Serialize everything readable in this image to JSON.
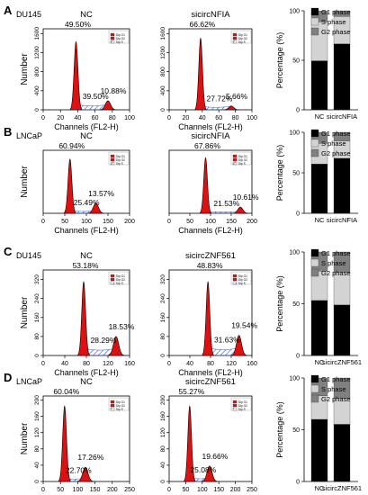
{
  "colors": {
    "g1": "#000000",
    "s": "#d3d3d3",
    "g2": "#808080",
    "peak": "#dd1111",
    "hatch": "#3355cc"
  },
  "chart_data": [
    {
      "type": "area",
      "panel": "A",
      "title": "NC",
      "cell_line": "DU145",
      "xlabel": "Channels (FL2-H)",
      "ylabel": "Number",
      "xticks": [
        "0",
        "20",
        "40",
        "60",
        "80",
        "100"
      ],
      "yticks": [
        "0",
        "400",
        "800",
        "1200",
        "1600"
      ],
      "xlim": [
        0,
        100
      ],
      "ylim": [
        0,
        1700
      ],
      "legend": [
        "Dip G1",
        "Dip G2",
        "Dip S"
      ],
      "annotations": {
        "g1": "49.50%",
        "s": "39.50%",
        "g2": "10.88%"
      },
      "peaks": {
        "g1_x": 38,
        "g1_h": 1430,
        "g2_x": 75,
        "g2_h": 190,
        "s_level": 110
      }
    },
    {
      "type": "area",
      "panel": "A",
      "title": "sicircNFIA",
      "xlabel": "Channels (FL2-H)",
      "ylabel": "",
      "xticks": [
        "0",
        "20",
        "40",
        "60",
        "80",
        "100"
      ],
      "yticks": [
        "0",
        "400",
        "800",
        "1200",
        "1600"
      ],
      "xlim": [
        0,
        100
      ],
      "ylim": [
        0,
        1700
      ],
      "legend": [
        "Dip G1",
        "Dip G2",
        "Dip S"
      ],
      "annotations": {
        "g1": "66.62%",
        "s": "27.72%",
        "g2": "5.66%"
      },
      "peaks": {
        "g1_x": 38,
        "g1_h": 1500,
        "g2_x": 75,
        "g2_h": 80,
        "s_level": 70
      }
    },
    {
      "type": "bar",
      "panel": "A",
      "categories": [
        "NC",
        "sicircNFIA"
      ],
      "ylabel": "Percentage (%)",
      "ylim": [
        0,
        100
      ],
      "yticks": [
        "0",
        "50",
        "100"
      ],
      "legend_position": "top-right",
      "series": [
        {
          "name": "G1 phase",
          "values": [
            49.5,
            66.62
          ]
        },
        {
          "name": "S phase",
          "values": [
            39.5,
            27.72
          ]
        },
        {
          "name": "G2 phase",
          "values": [
            10.88,
            5.66
          ]
        }
      ]
    },
    {
      "type": "area",
      "panel": "B",
      "title": "NC",
      "cell_line": "LNCaP",
      "xlabel": "Channels (FL2-H)",
      "ylabel": "Number",
      "xticks": [
        "0",
        "50",
        "100",
        "150",
        "200"
      ],
      "yticks": [],
      "xlim": [
        0,
        200
      ],
      "ylim": [
        0,
        100
      ],
      "legend": [
        "Dip G1",
        "Dip G2",
        "Dip S"
      ],
      "annotations": {
        "g1": "60.94%",
        "s": "25.49%",
        "g2": "13.57%"
      },
      "peaks": {
        "g1_x": 62,
        "g1_h": 86,
        "g2_x": 122,
        "g2_h": 16,
        "s_level": 4
      }
    },
    {
      "type": "area",
      "panel": "B",
      "title": "sicircNFIA",
      "xlabel": "Channels (FL2-H)",
      "ylabel": "",
      "xticks": [
        "0",
        "50",
        "100",
        "150",
        "200"
      ],
      "yticks": [],
      "xlim": [
        0,
        200
      ],
      "ylim": [
        0,
        100
      ],
      "legend": [
        "Dip G1",
        "Dip G2",
        "Dip S"
      ],
      "annotations": {
        "g1": "67.86%",
        "s": "21.53%",
        "g2": "10.61%"
      },
      "peaks": {
        "g1_x": 88,
        "g1_h": 88,
        "g2_x": 172,
        "g2_h": 10,
        "s_level": 3
      }
    },
    {
      "type": "bar",
      "panel": "B",
      "categories": [
        "NC",
        "sicircNFIA"
      ],
      "ylabel": "Percentage (%)",
      "ylim": [
        0,
        100
      ],
      "yticks": [
        "0",
        "50",
        "100"
      ],
      "legend_position": "top-right",
      "series": [
        {
          "name": "G1 phase",
          "values": [
            60.94,
            67.86
          ]
        },
        {
          "name": "S phase",
          "values": [
            25.49,
            21.53
          ]
        },
        {
          "name": "G2 phase",
          "values": [
            13.57,
            10.61
          ]
        }
      ]
    },
    {
      "type": "area",
      "panel": "C",
      "title": "NC",
      "cell_line": "DU145",
      "xlabel": "Channels (FL2-H)",
      "ylabel": "Number",
      "xticks": [
        "0",
        "40",
        "80",
        "120",
        "160"
      ],
      "yticks": [
        "0",
        "80",
        "160",
        "240",
        "320"
      ],
      "xlim": [
        0,
        160
      ],
      "ylim": [
        0,
        360
      ],
      "legend": [
        "Dip G1",
        "Dip G2",
        "Dip S"
      ],
      "annotations": {
        "g1": "53.18%",
        "s": "28.29%",
        "g2": "18.53%"
      },
      "peaks": {
        "g1_x": 75,
        "g1_h": 310,
        "g2_x": 135,
        "g2_h": 80,
        "s_level": 30
      }
    },
    {
      "type": "area",
      "panel": "C",
      "title": "sicircZNF561",
      "xlabel": "Channels (FL2-H)",
      "ylabel": "",
      "xticks": [
        "0",
        "40",
        "80",
        "120",
        "160"
      ],
      "yticks": [
        "0",
        "80",
        "160",
        "240",
        "320"
      ],
      "xlim": [
        0,
        160
      ],
      "ylim": [
        0,
        360
      ],
      "legend": [
        "Dip G1",
        "Dip G2",
        "Dip S"
      ],
      "annotations": {
        "g1": "48.83%",
        "s": "31.63%",
        "g2": "19.54%"
      },
      "peaks": {
        "g1_x": 75,
        "g1_h": 310,
        "g2_x": 135,
        "g2_h": 85,
        "s_level": 32
      }
    },
    {
      "type": "bar",
      "panel": "C",
      "categories": [
        "NC",
        "sicircZNF561"
      ],
      "ylabel": "Percentage (%)",
      "ylim": [
        0,
        100
      ],
      "yticks": [
        "0",
        "50",
        "100"
      ],
      "legend_position": "top-right",
      "series": [
        {
          "name": "G1 phase",
          "values": [
            53.18,
            48.83
          ]
        },
        {
          "name": "S phase",
          "values": [
            28.29,
            31.63
          ]
        },
        {
          "name": "G2 phase",
          "values": [
            18.53,
            19.54
          ]
        }
      ]
    },
    {
      "type": "area",
      "panel": "D",
      "title": "NC",
      "cell_line": "LNCaP",
      "xlabel": "Channels (FL2-H)",
      "ylabel": "Number",
      "xticks": [
        "0",
        "50",
        "100",
        "150",
        "200",
        "250"
      ],
      "yticks": [
        "0",
        "40",
        "80",
        "120",
        "160",
        "200"
      ],
      "xlim": [
        0,
        250
      ],
      "ylim": [
        0,
        210
      ],
      "legend": [
        "Dip G1",
        "Dip G2",
        "Dip S"
      ],
      "annotations": {
        "g1": "60.04%",
        "s": "22.70%",
        "g2": "17.26%"
      },
      "peaks": {
        "g1_x": 62,
        "g1_h": 185,
        "g2_x": 122,
        "g2_h": 35,
        "s_level": 8
      }
    },
    {
      "type": "area",
      "panel": "D",
      "title": "sicircZNF561",
      "xlabel": "Channels (FL2-H)",
      "ylabel": "",
      "xticks": [
        "0",
        "50",
        "100",
        "150",
        "200",
        "250"
      ],
      "yticks": [
        "0",
        "40",
        "80",
        "120",
        "160",
        "200"
      ],
      "xlim": [
        0,
        250
      ],
      "ylim": [
        0,
        210
      ],
      "legend": [
        "Dip G1",
        "Dip G2",
        "Dip S"
      ],
      "annotations": {
        "g1": "55.27%",
        "s": "25.08%",
        "g2": "19.66%"
      },
      "peaks": {
        "g1_x": 62,
        "g1_h": 185,
        "g2_x": 122,
        "g2_h": 38,
        "s_level": 9
      }
    },
    {
      "type": "bar",
      "panel": "D",
      "categories": [
        "NC",
        "sicircZNF561"
      ],
      "ylabel": "Percentage (%)",
      "ylim": [
        0,
        100
      ],
      "yticks": [
        "0",
        "50",
        "100"
      ],
      "legend_position": "top-right",
      "series": [
        {
          "name": "G1 phase",
          "values": [
            60.04,
            55.27
          ]
        },
        {
          "name": "S phase",
          "values": [
            22.7,
            25.08
          ]
        },
        {
          "name": "G2 phase",
          "values": [
            17.26,
            19.66
          ]
        }
      ]
    }
  ]
}
